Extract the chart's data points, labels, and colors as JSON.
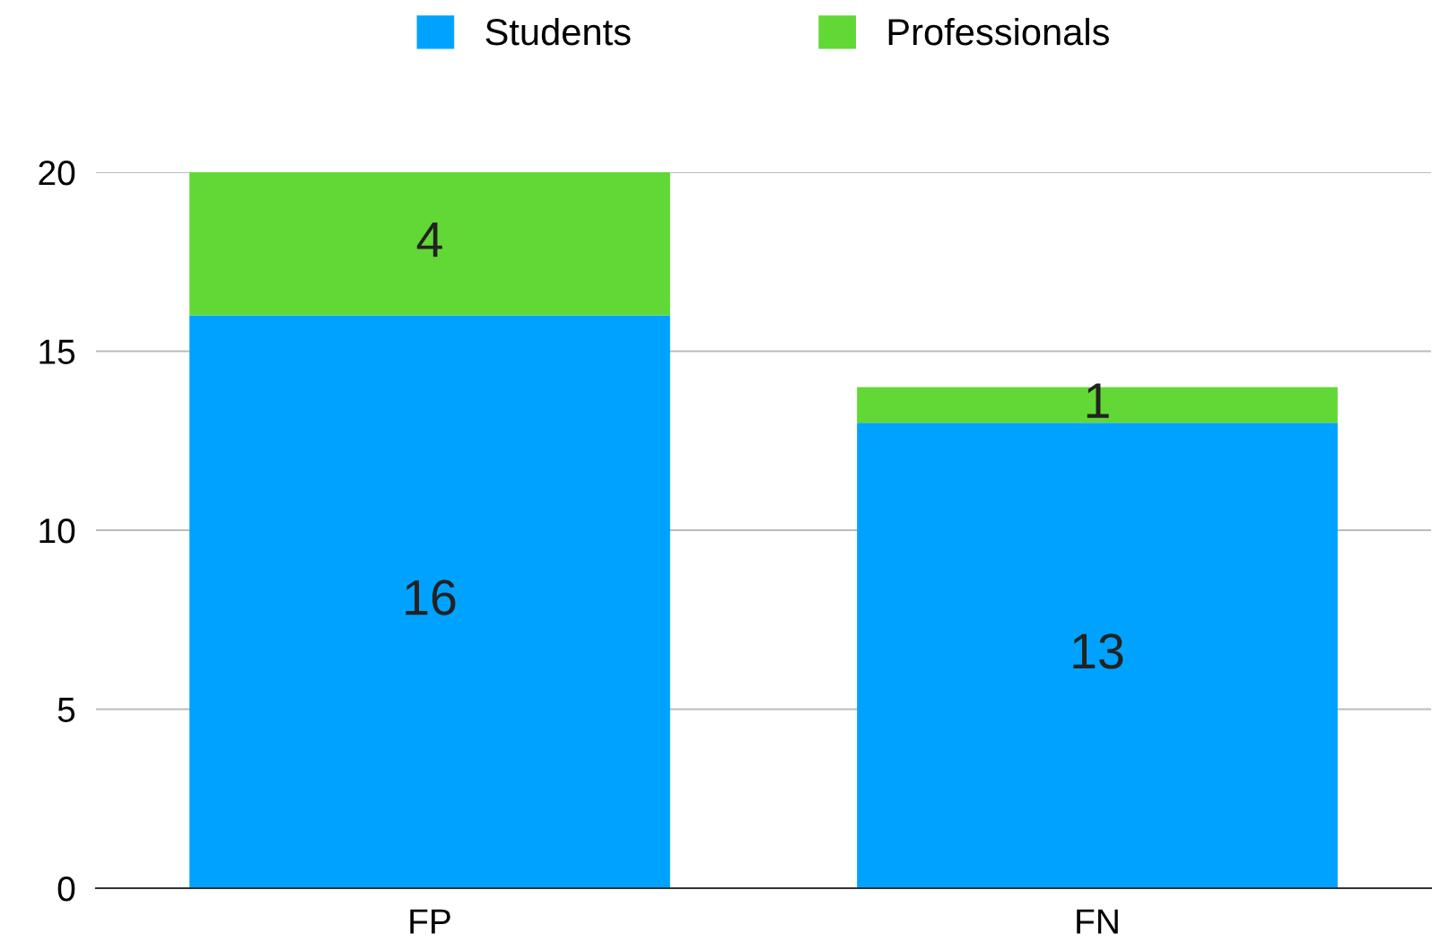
{
  "chart_data": {
    "type": "bar",
    "stacked": true,
    "categories": [
      "FP",
      "FN"
    ],
    "series": [
      {
        "name": "Students",
        "color": "#00a2ff",
        "values": [
          16,
          13
        ]
      },
      {
        "name": "Professionals",
        "color": "#61d836",
        "values": [
          4,
          1
        ]
      }
    ],
    "ylim": [
      0,
      20
    ],
    "yticks": [
      0,
      5,
      10,
      15,
      20
    ],
    "grid": "y",
    "legend": "top",
    "data_labels": true
  }
}
